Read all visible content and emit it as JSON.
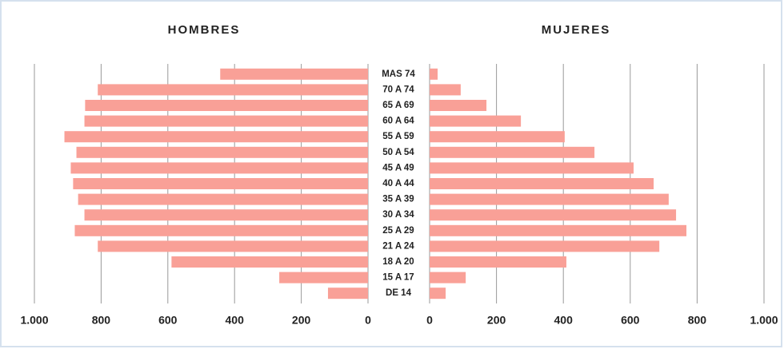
{
  "chart_data": {
    "type": "pyramid",
    "categories": [
      "MAS 74",
      "70 A 74",
      "65 A 69",
      "60 A 64",
      "55 A 59",
      "50 A 54",
      "45 A 49",
      "40 A 44",
      "35 A 39",
      "30 A 34",
      "25 A 29",
      "21 A 24",
      "18 A 20",
      "15 A 17",
      "DE 14"
    ],
    "series": [
      {
        "name": "HOMBRES",
        "color": "#f9a097",
        "values": [
          443,
          810,
          848,
          850,
          910,
          874,
          891,
          884,
          869,
          850,
          879,
          810,
          589,
          266,
          120
        ]
      },
      {
        "name": "MUJERES",
        "color": "#f9a097",
        "values": [
          24,
          93,
          170,
          273,
          404,
          493,
          610,
          670,
          715,
          737,
          768,
          687,
          409,
          108,
          48
        ]
      }
    ],
    "xlim": [
      0,
      1000
    ],
    "xticks": [
      0,
      200,
      400,
      600,
      800,
      {
        "value": 1000,
        "label": "1.000"
      }
    ],
    "grid": true
  }
}
